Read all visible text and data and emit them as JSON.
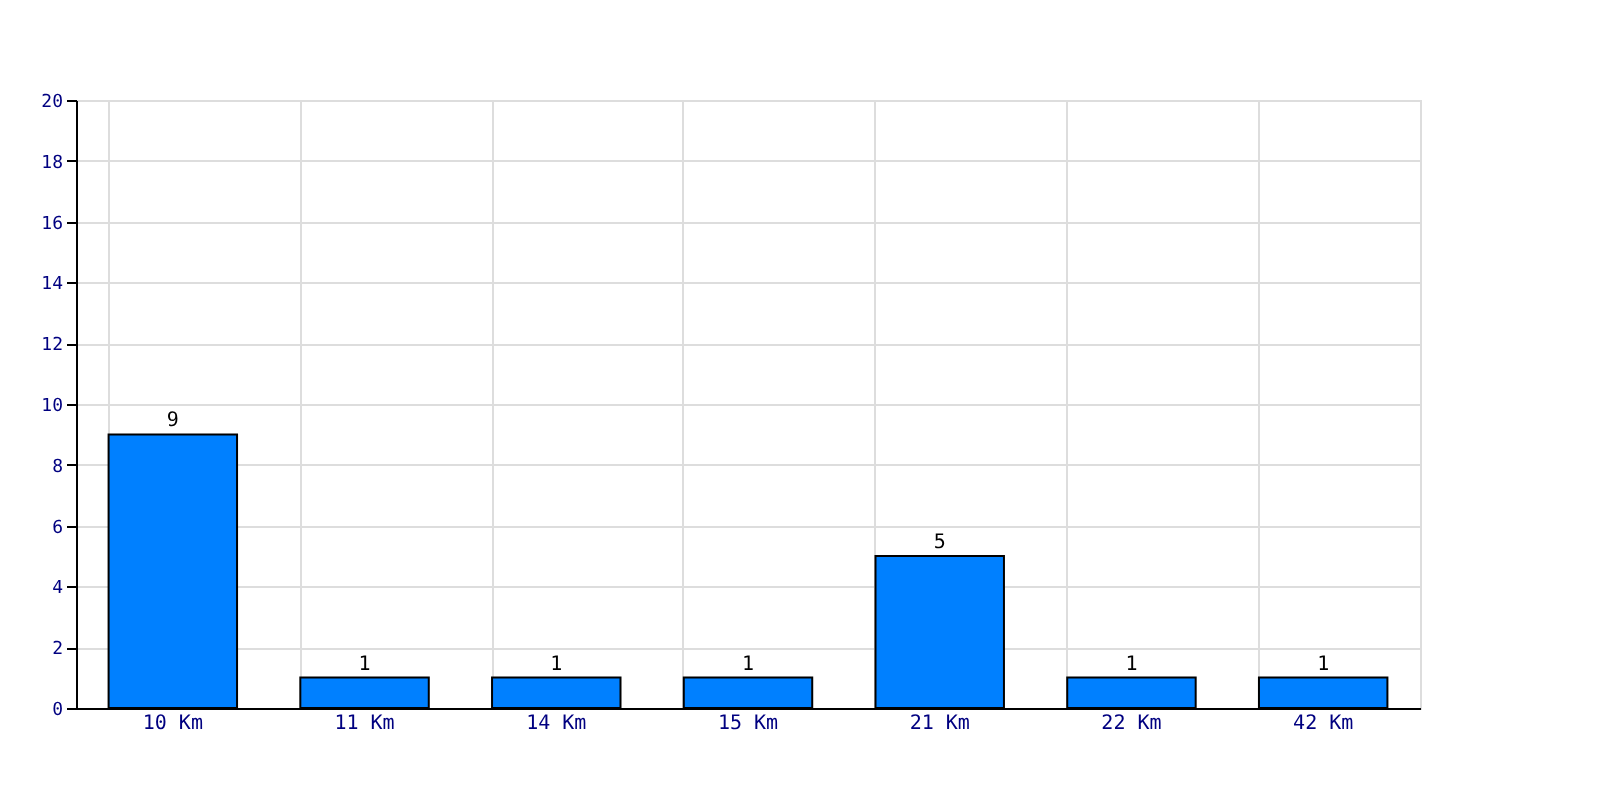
{
  "chart_data": {
    "type": "bar",
    "categories": [
      "10 Km",
      "11 Km",
      "14 Km",
      "15 Km",
      "21 Km",
      "22 Km",
      "42 Km"
    ],
    "values": [
      9,
      1,
      1,
      1,
      5,
      1,
      1
    ],
    "color": "#0080ff",
    "ylim": [
      0,
      20
    ],
    "yticks": [
      0,
      2,
      4,
      6,
      8,
      10,
      12,
      14,
      16,
      18,
      20
    ],
    "grid": true,
    "data_labels": true
  }
}
